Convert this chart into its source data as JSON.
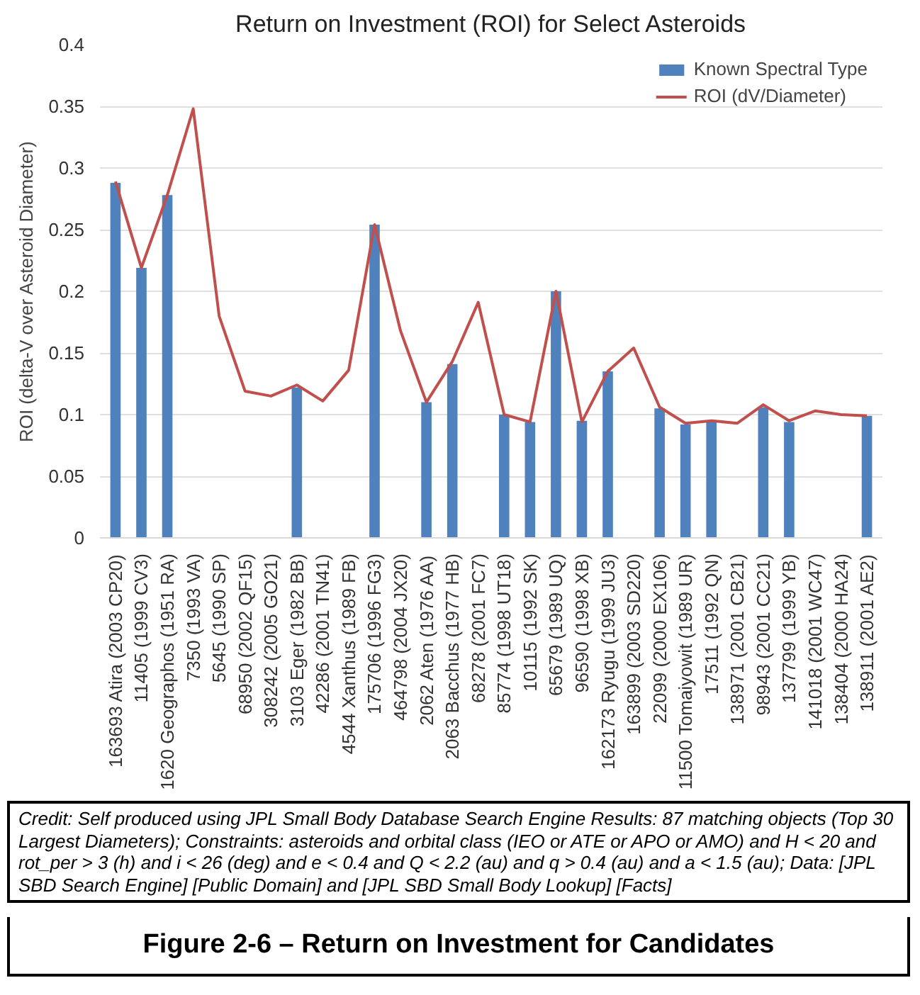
{
  "chart_data": {
    "type": "bar",
    "title": "Return on Investment (ROI) for Select Asteroids",
    "ylabel": "ROI (delta-V over Asteroid Diameter)",
    "categories": [
      "163693 Atira (2003 CP20)",
      "11405 (1999 CV3)",
      "1620 Geographos (1951 RA)",
      "7350 (1993 VA)",
      "5645 (1990 SP)",
      "68950 (2002 QF15)",
      "308242 (2005 GO21)",
      "3103 Eger (1982 BB)",
      "42286 (2001 TN41)",
      "4544 Xanthus (1989 FB)",
      "175706 (1996 FG3)",
      "464798 (2004 JX20)",
      "2062 Aten (1976 AA)",
      "2063 Bacchus (1977 HB)",
      "68278 (2001 FC7)",
      "85774 (1998 UT18)",
      "10115 (1992 SK)",
      "65679 (1989 UQ)",
      "96590 (1998 XB)",
      "162173 Ryugu (1999 JU3)",
      "163899 (2003 SD220)",
      "22099 (2000 EX106)",
      "11500 Tomaiyowit (1989 UR)",
      "17511 (1992 QN)",
      "138971 (2001 CB21)",
      "98943 (2001 CC21)",
      "137799 (1999 YB)",
      "141018 (2001 WC47)",
      "138404 (2000 HA24)",
      "138911 (2001 AE2)"
    ],
    "series": [
      {
        "name": "Known Spectral Type",
        "color": "#4f81bd",
        "values": [
          0.288,
          0.219,
          0.278,
          null,
          null,
          null,
          null,
          0.122,
          null,
          null,
          0.254,
          null,
          0.11,
          0.141,
          null,
          0.1,
          0.094,
          0.2,
          0.095,
          0.135,
          null,
          0.105,
          0.092,
          0.094,
          null,
          0.106,
          0.094,
          null,
          null,
          0.099
        ]
      },
      {
        "name": "ROI (dV/Diameter)",
        "type": "line",
        "color": "#c0504d",
        "values": [
          0.289,
          0.219,
          0.278,
          0.348,
          0.18,
          0.119,
          0.115,
          0.124,
          0.111,
          0.136,
          0.254,
          0.168,
          0.11,
          0.143,
          0.191,
          0.1,
          0.094,
          0.2,
          0.094,
          0.135,
          0.154,
          0.106,
          0.093,
          0.095,
          0.093,
          0.108,
          0.095,
          0.103,
          0.1,
          0.099
        ]
      }
    ],
    "ylim": [
      0,
      0.4
    ],
    "yticks": [
      0,
      0.05,
      0.1,
      0.15,
      0.2,
      0.25,
      0.3,
      0.35,
      0.4
    ],
    "grid": "y",
    "legend": "top right",
    "annotations": [
      "Credit: Self produced using JPL Small Body Database Search Engine Results: 87 matching objects (Top 30 Largest Diameters); Constraints: asteroids and orbital class (IEO or ATE or APO or AMO) and H < 20 and rot_per > 3 (h) and i < 26 (deg) and e < 0.4 and Q < 2.2 (au) and q > 0.4 (au) and a < 1.5 (au); Data: [JPL SBD Search Engine] [Public Domain] and [JPL SBD Small Body Lookup] [Facts]",
      "Figure 2-6 – Return on Investment for Candidates"
    ]
  }
}
